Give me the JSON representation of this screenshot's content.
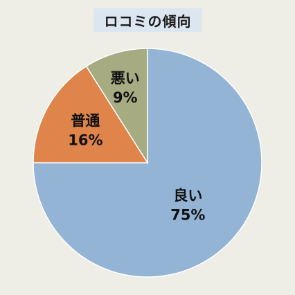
{
  "chart_data": {
    "type": "pie",
    "title": "ロコミの傾向",
    "slices": [
      {
        "label": "良い",
        "value": 75,
        "value_label": "75%",
        "color": "#94b4d6"
      },
      {
        "label": "普通",
        "value": 16,
        "value_label": "16%",
        "color": "#df844a"
      },
      {
        "label": "悪い",
        "value": 9,
        "value_label": "9%",
        "color": "#a6ab82"
      }
    ],
    "start": "12 o'clock",
    "direction": "clockwise"
  }
}
